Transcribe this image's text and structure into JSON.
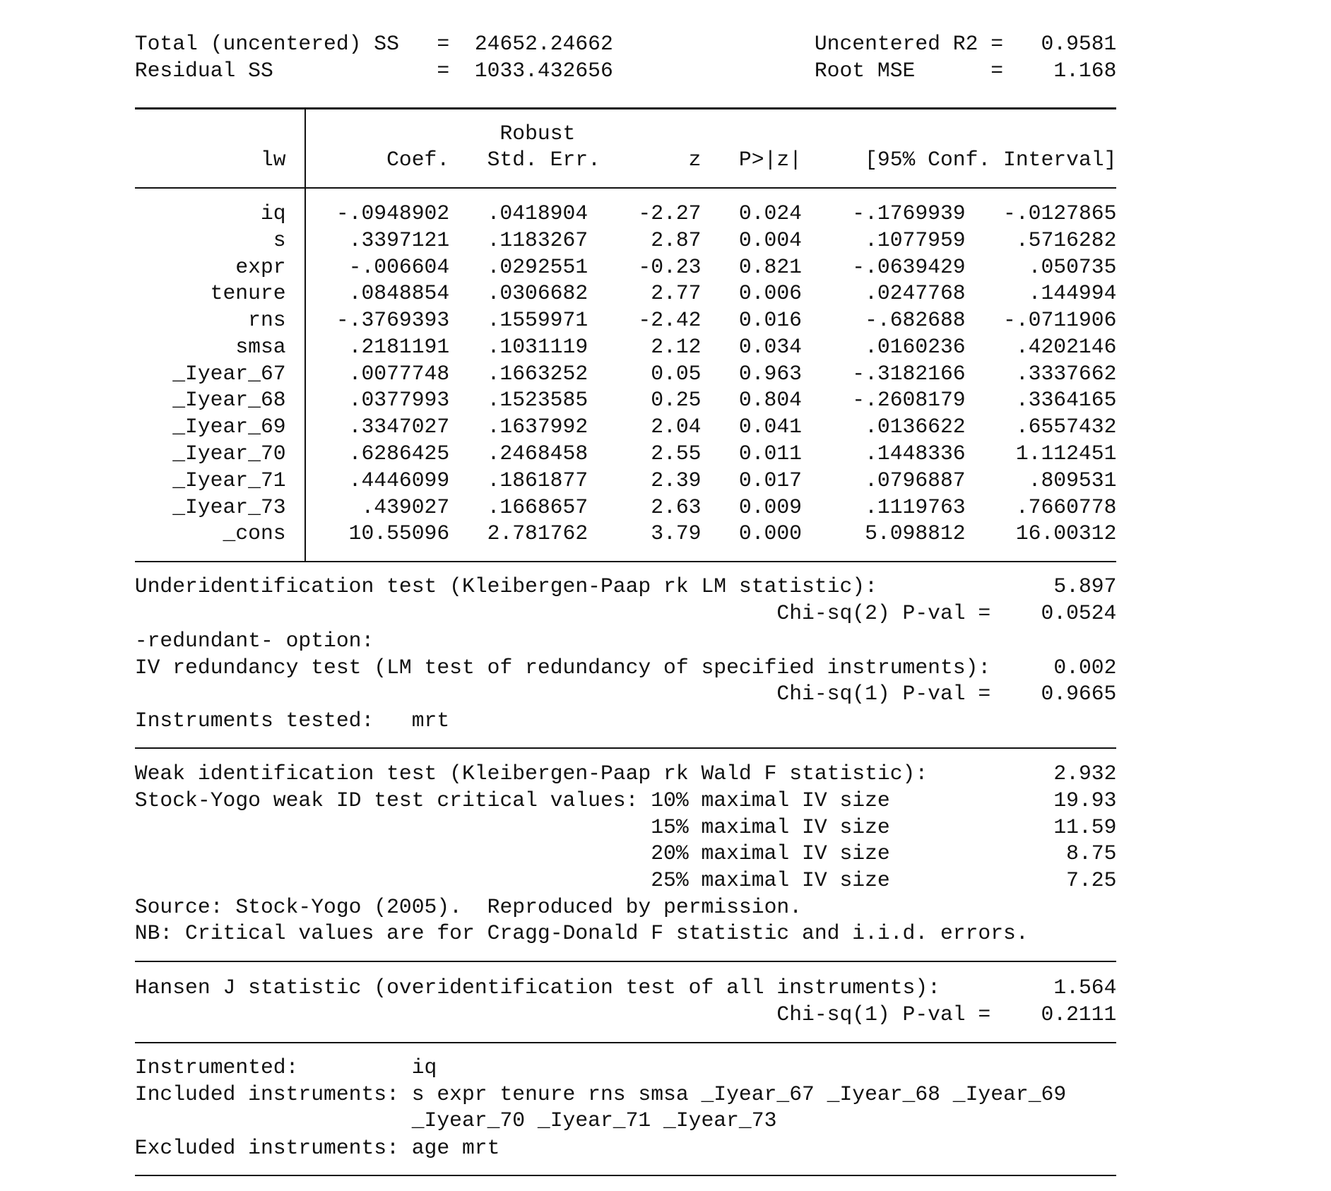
{
  "header": {
    "total_ss_label": "Total (uncentered) SS",
    "total_ss_eq": "=",
    "total_ss_value": "24652.24662",
    "residual_ss_label": "Residual SS",
    "residual_ss_eq": "=",
    "residual_ss_value": "1033.432656",
    "r2_label": "Uncentered R2 =",
    "r2_value": "0.9581",
    "rmse_label": "Root MSE",
    "rmse_eq": "=",
    "rmse_value": "1.168"
  },
  "table": {
    "depvar": "lw",
    "robust": "Robust",
    "col_coef": "Coef.",
    "col_se": "Std. Err.",
    "col_z": "z",
    "col_p": "P>|z|",
    "col_ci": "[95% Conf. Interval]",
    "rows": [
      {
        "var": "iq",
        "coef": "-.0948902",
        "se": ".0418904",
        "z": "-2.27",
        "p": "0.024",
        "lo": "-.1769939",
        "hi": "-.0127865"
      },
      {
        "var": "s",
        "coef": ".3397121",
        "se": ".1183267",
        "z": "2.87",
        "p": "0.004",
        "lo": ".1077959",
        "hi": ".5716282"
      },
      {
        "var": "expr",
        "coef": "-.006604",
        "se": ".0292551",
        "z": "-0.23",
        "p": "0.821",
        "lo": "-.0639429",
        "hi": ".050735"
      },
      {
        "var": "tenure",
        "coef": ".0848854",
        "se": ".0306682",
        "z": "2.77",
        "p": "0.006",
        "lo": ".0247768",
        "hi": ".144994"
      },
      {
        "var": "rns",
        "coef": "-.3769393",
        "se": ".1559971",
        "z": "-2.42",
        "p": "0.016",
        "lo": "-.682688",
        "hi": "-.0711906"
      },
      {
        "var": "smsa",
        "coef": ".2181191",
        "se": ".1031119",
        "z": "2.12",
        "p": "0.034",
        "lo": ".0160236",
        "hi": ".4202146"
      },
      {
        "var": "_Iyear_67",
        "coef": ".0077748",
        "se": ".1663252",
        "z": "0.05",
        "p": "0.963",
        "lo": "-.3182166",
        "hi": ".3337662"
      },
      {
        "var": "_Iyear_68",
        "coef": ".0377993",
        "se": ".1523585",
        "z": "0.25",
        "p": "0.804",
        "lo": "-.2608179",
        "hi": ".3364165"
      },
      {
        "var": "_Iyear_69",
        "coef": ".3347027",
        "se": ".1637992",
        "z": "2.04",
        "p": "0.041",
        "lo": ".0136622",
        "hi": ".6557432"
      },
      {
        "var": "_Iyear_70",
        "coef": ".6286425",
        "se": ".2468458",
        "z": "2.55",
        "p": "0.011",
        "lo": ".1448336",
        "hi": "1.112451"
      },
      {
        "var": "_Iyear_71",
        "coef": ".4446099",
        "se": ".1861877",
        "z": "2.39",
        "p": "0.017",
        "lo": ".0796887",
        "hi": ".809531"
      },
      {
        "var": "_Iyear_73",
        "coef": ".439027",
        "se": ".1668657",
        "z": "2.63",
        "p": "0.009",
        "lo": ".1119763",
        "hi": ".7660778"
      },
      {
        "var": "_cons",
        "coef": "10.55096",
        "se": "2.781762",
        "z": "3.79",
        "p": "0.000",
        "lo": "5.098812",
        "hi": "16.00312"
      }
    ]
  },
  "underid": {
    "label": "Underidentification test (Kleibergen-Paap rk LM statistic):",
    "value": "5.897",
    "pval_label": "Chi-sq(2) P-val =",
    "pval": "0.0524",
    "redundant_label": "-redundant- option:",
    "iv_label": "IV redundancy test (LM test of redundancy of specified instruments):",
    "iv_value": "0.002",
    "iv_pval_label": "Chi-sq(1) P-val =",
    "iv_pval": "0.9665",
    "tested_label": "Instruments tested:",
    "tested_value": "mrt"
  },
  "weakid": {
    "label": "Weak identification test (Kleibergen-Paap rk Wald F statistic):",
    "value": "2.932",
    "sy_label": "Stock-Yogo weak ID test critical values:",
    "critical": [
      {
        "label": "10% maximal IV size",
        "value": "19.93"
      },
      {
        "label": "15% maximal IV size",
        "value": "11.59"
      },
      {
        "label": "20% maximal IV size",
        "value": "8.75"
      },
      {
        "label": "25% maximal IV size",
        "value": "7.25"
      }
    ],
    "source": "Source: Stock-Yogo (2005).  Reproduced by permission.",
    "nb": "NB: Critical values are for Cragg-Donald F statistic and i.i.d. errors."
  },
  "hansen": {
    "label": "Hansen J statistic (overidentification test of all instruments):",
    "value": "1.564",
    "pval_label": "Chi-sq(1) P-val =",
    "pval": "0.2111"
  },
  "instruments": {
    "instrumented_label": "Instrumented:",
    "instrumented": "iq",
    "included_label": "Included instruments:",
    "included_line1": "s expr tenure rns smsa _Iyear_67 _Iyear_68 _Iyear_69",
    "included_line2": "_Iyear_70 _Iyear_71 _Iyear_73",
    "excluded_label": "Excluded instruments:",
    "excluded": "age mrt"
  }
}
